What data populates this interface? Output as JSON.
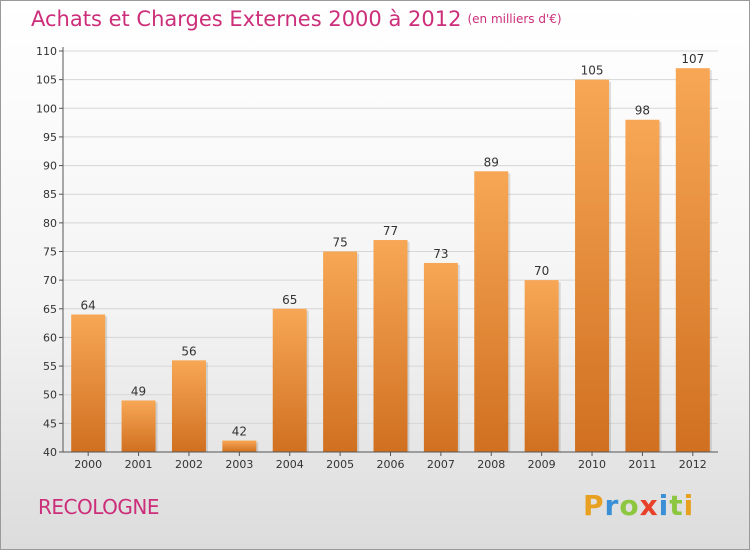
{
  "header": {
    "title": "Achats et Charges Externes 2000 à 2012",
    "unit": "(en milliers d'€)"
  },
  "footer": {
    "commune": "RECOLOGNE",
    "logo_letters": [
      "P",
      "r",
      "o",
      "x",
      "i",
      "t",
      "i"
    ],
    "logo_colors": [
      "#e8a020",
      "#3a8fd6",
      "#8dc63f",
      "#e8412a",
      "#3a8fd6",
      "#8dc63f",
      "#e8a020"
    ]
  },
  "colors": {
    "title": "#cc2e7a",
    "bar_light": "#f7a755",
    "bar_dark": "#d07020"
  },
  "chart_data": {
    "type": "bar",
    "categories": [
      "2000",
      "2001",
      "2002",
      "2003",
      "2004",
      "2005",
      "2006",
      "2007",
      "2008",
      "2009",
      "2010",
      "2011",
      "2012"
    ],
    "values": [
      64,
      49,
      56,
      42,
      65,
      75,
      77,
      73,
      89,
      70,
      105,
      98,
      107
    ],
    "ylim": [
      40,
      110
    ],
    "yticks": [
      40,
      45,
      50,
      55,
      60,
      65,
      70,
      75,
      80,
      85,
      90,
      95,
      100,
      105,
      110
    ],
    "grid": true
  }
}
